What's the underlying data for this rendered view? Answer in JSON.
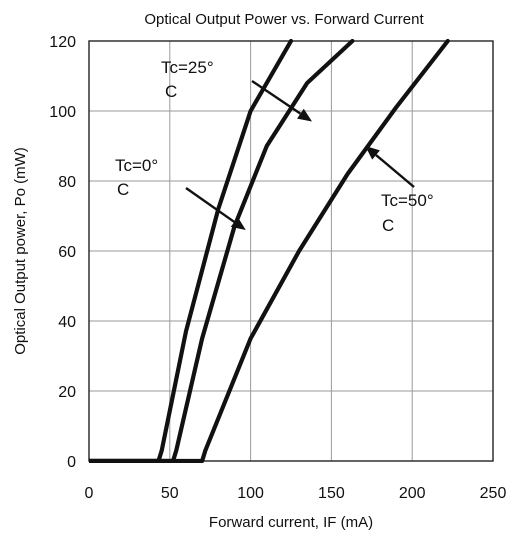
{
  "chart_data": {
    "type": "line",
    "title": "Optical Output Power vs. Forward Current",
    "xlabel": "Forward current, IF (mA)",
    "ylabel": "Optical Output power, Po (mW)",
    "xlim": [
      0,
      250
    ],
    "ylim": [
      0,
      120
    ],
    "x_ticks": [
      "0",
      "50",
      "100",
      "150",
      "200",
      "250"
    ],
    "y_ticks": [
      "0",
      "20",
      "40",
      "60",
      "80",
      "100",
      "120"
    ],
    "grid": true,
    "series": [
      {
        "points": [
          [
            0,
            0
          ],
          [
            43,
            0
          ],
          [
            45,
            3
          ],
          [
            60,
            37
          ],
          [
            80,
            72
          ],
          [
            100,
            100
          ],
          [
            125,
            120
          ]
        ]
      },
      {
        "points": [
          [
            0,
            0
          ],
          [
            52,
            0
          ],
          [
            54,
            3
          ],
          [
            70,
            35
          ],
          [
            90,
            67
          ],
          [
            110,
            90
          ],
          [
            135,
            108
          ],
          [
            163,
            120
          ]
        ]
      },
      {
        "points": [
          [
            0,
            0
          ],
          [
            70,
            0
          ],
          [
            72,
            3
          ],
          [
            100,
            35
          ],
          [
            130,
            60
          ],
          [
            160,
            82
          ],
          [
            190,
            101
          ],
          [
            222,
            120
          ]
        ]
      }
    ],
    "annotations": [
      {
        "text_line1": "Tc=0°",
        "text_line2": "C",
        "arrow_to": [
          97,
          66
        ]
      },
      {
        "text_line1": "Tc=25°",
        "text_line2": "C",
        "arrow_to": [
          138,
          97
        ]
      },
      {
        "text_line1": "Tc=50°",
        "text_line2": "C",
        "arrow_to": [
          171,
          90
        ]
      }
    ]
  }
}
